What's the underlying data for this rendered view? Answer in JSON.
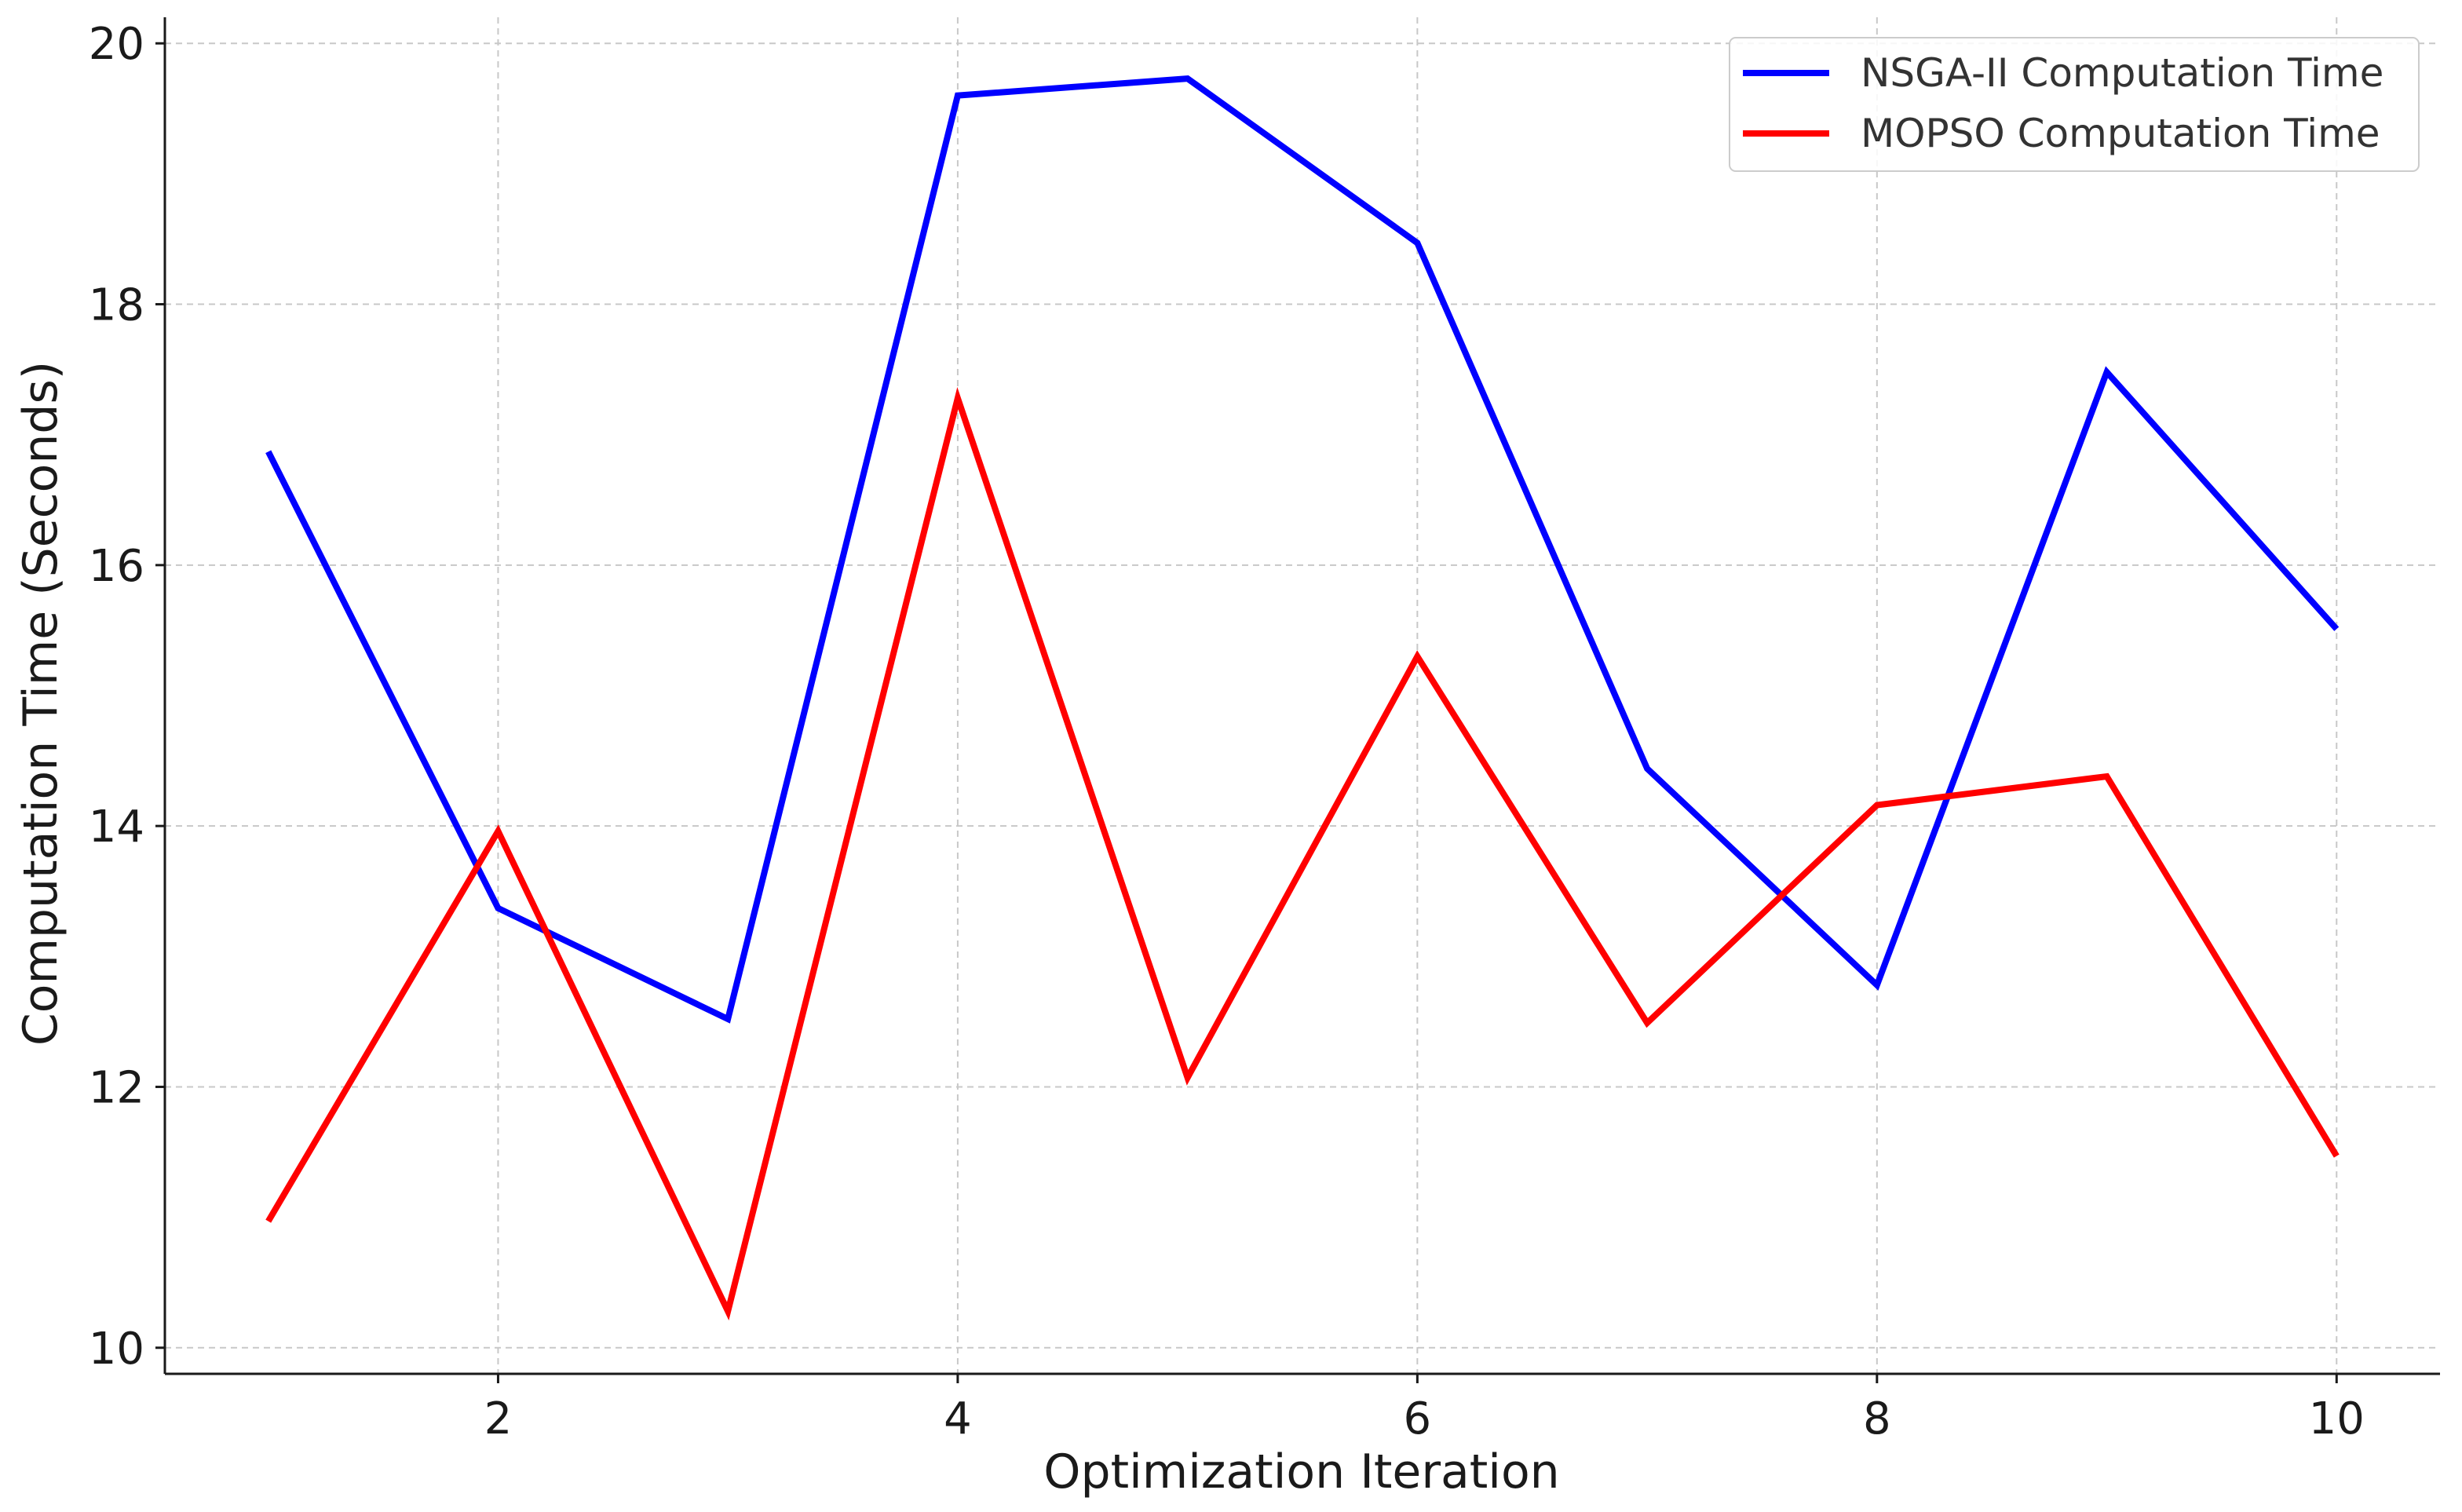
{
  "chart_data": {
    "type": "line",
    "title": "",
    "xlabel": "Optimization Iteration",
    "ylabel": "Computation Time (Seconds)",
    "x": [
      1,
      2,
      3,
      4,
      5,
      6,
      7,
      8,
      9,
      10
    ],
    "xticks": [
      2,
      4,
      6,
      8,
      10
    ],
    "yticks": [
      10,
      12,
      14,
      16,
      18,
      20
    ],
    "xlim": [
      0.55,
      10.45
    ],
    "ylim": [
      9.8,
      20.2
    ],
    "grid": true,
    "legend_position": "top-right",
    "series": [
      {
        "name": "NSGA-II Computation Time",
        "color": "#0000ff",
        "values": [
          16.87,
          13.37,
          12.52,
          19.6,
          19.73,
          18.47,
          14.44,
          12.78,
          17.48,
          15.51
        ]
      },
      {
        "name": "MOPSO Computation Time",
        "color": "#ff0000",
        "values": [
          10.97,
          13.96,
          10.28,
          17.28,
          12.07,
          15.3,
          12.49,
          14.16,
          14.38,
          11.47
        ]
      }
    ]
  }
}
